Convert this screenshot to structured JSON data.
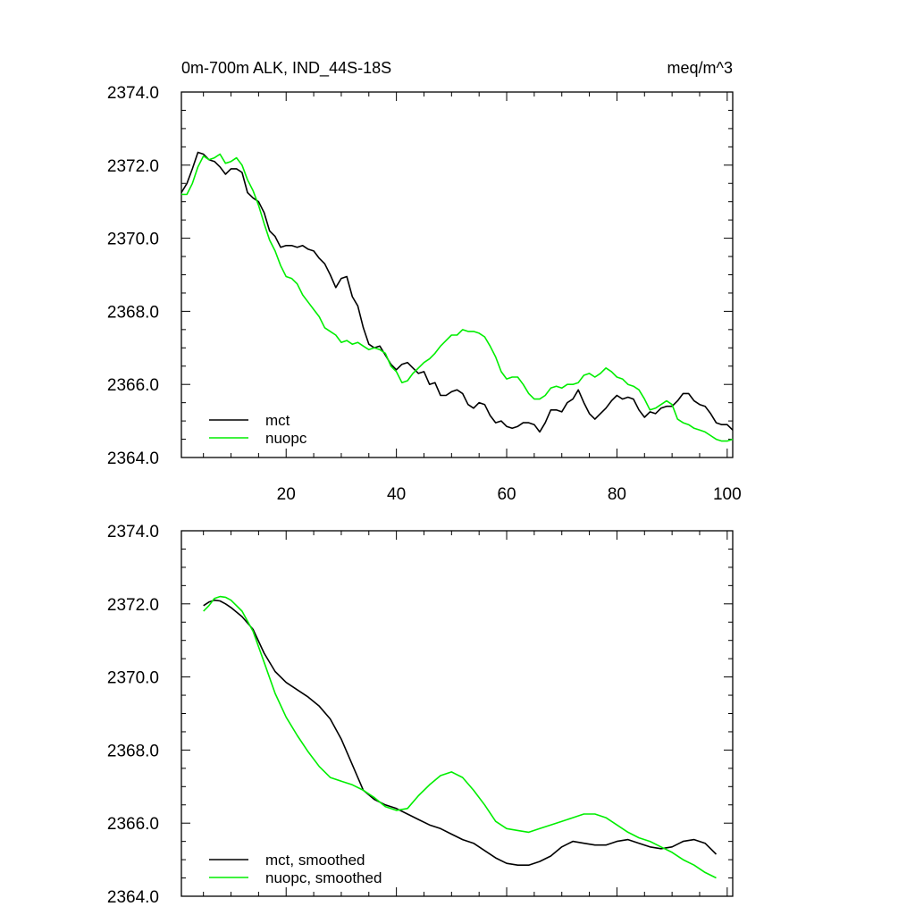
{
  "title_left": "0m-700m ALK, IND_44S-18S",
  "title_right": "meq/m^3",
  "chart_data": [
    {
      "type": "line",
      "title": "0m-700m ALK, IND_44S-18S",
      "units": "meq/m^3",
      "xlim": [
        1,
        101
      ],
      "ylim": [
        2364.0,
        2374.0
      ],
      "xticks": [
        20,
        40,
        60,
        80,
        100
      ],
      "xtick_labels": [
        "20",
        "40",
        "60",
        "80",
        "100"
      ],
      "show_xtick_labels": true,
      "yticks": [
        2364.0,
        2366.0,
        2368.0,
        2370.0,
        2372.0,
        2374.0
      ],
      "ytick_labels": [
        "2364.0",
        "2366.0",
        "2368.0",
        "2370.0",
        "2372.0",
        "2374.0"
      ],
      "grid": false,
      "legend": "bottom-left",
      "series": [
        {
          "name": "mct",
          "color": "#000000",
          "x": [
            1,
            2,
            3,
            4,
            5,
            6,
            7,
            8,
            9,
            10,
            11,
            12,
            13,
            14,
            15,
            16,
            17,
            18,
            19,
            20,
            21,
            22,
            23,
            24,
            25,
            26,
            27,
            28,
            29,
            30,
            31,
            32,
            33,
            34,
            35,
            36,
            37,
            38,
            39,
            40,
            41,
            42,
            43,
            44,
            45,
            46,
            47,
            48,
            49,
            50,
            51,
            52,
            53,
            54,
            55,
            56,
            57,
            58,
            59,
            60,
            61,
            62,
            63,
            64,
            65,
            66,
            67,
            68,
            69,
            70,
            71,
            72,
            73,
            74,
            75,
            76,
            77,
            78,
            79,
            80,
            81,
            82,
            83,
            84,
            85,
            86,
            87,
            88,
            89,
            90,
            91,
            92,
            93,
            94,
            95,
            96,
            97,
            98,
            99,
            100,
            101
          ],
          "values": [
            2371.25,
            2371.5,
            2371.9,
            2372.35,
            2372.3,
            2372.15,
            2372.1,
            2371.95,
            2371.75,
            2371.9,
            2371.9,
            2371.8,
            2371.25,
            2371.1,
            2371.0,
            2370.7,
            2370.2,
            2370.05,
            2369.75,
            2369.8,
            2369.8,
            2369.75,
            2369.8,
            2369.7,
            2369.65,
            2369.45,
            2369.3,
            2369.0,
            2368.65,
            2368.9,
            2368.95,
            2368.4,
            2368.15,
            2367.55,
            2367.1,
            2367.0,
            2367.05,
            2366.8,
            2366.55,
            2366.4,
            2366.55,
            2366.6,
            2366.45,
            2366.3,
            2366.35,
            2366.0,
            2366.05,
            2365.7,
            2365.7,
            2365.8,
            2365.85,
            2365.75,
            2365.45,
            2365.35,
            2365.5,
            2365.45,
            2365.15,
            2364.95,
            2365.0,
            2364.85,
            2364.8,
            2364.85,
            2364.95,
            2364.95,
            2364.9,
            2364.7,
            2364.95,
            2365.3,
            2365.3,
            2365.25,
            2365.5,
            2365.6,
            2365.85,
            2365.5,
            2365.2,
            2365.05,
            2365.2,
            2365.35,
            2365.55,
            2365.7,
            2365.6,
            2365.65,
            2365.6,
            2365.3,
            2365.1,
            2365.25,
            2365.2,
            2365.35,
            2365.4,
            2365.4,
            2365.55,
            2365.75,
            2365.75,
            2365.55,
            2365.45,
            2365.4,
            2365.2,
            2364.95,
            2364.9,
            2364.9,
            2364.75
          ]
        },
        {
          "name": "nuopc",
          "color": "#00ee00",
          "x": [
            1,
            2,
            3,
            4,
            5,
            6,
            7,
            8,
            9,
            10,
            11,
            12,
            13,
            14,
            15,
            16,
            17,
            18,
            19,
            20,
            21,
            22,
            23,
            24,
            25,
            26,
            27,
            28,
            29,
            30,
            31,
            32,
            33,
            34,
            35,
            36,
            37,
            38,
            39,
            40,
            41,
            42,
            43,
            44,
            45,
            46,
            47,
            48,
            49,
            50,
            51,
            52,
            53,
            54,
            55,
            56,
            57,
            58,
            59,
            60,
            61,
            62,
            63,
            64,
            65,
            66,
            67,
            68,
            69,
            70,
            71,
            72,
            73,
            74,
            75,
            76,
            77,
            78,
            79,
            80,
            81,
            82,
            83,
            84,
            85,
            86,
            87,
            88,
            89,
            90,
            91,
            92,
            93,
            94,
            95,
            96,
            97,
            98,
            99,
            100,
            101
          ],
          "values": [
            2371.2,
            2371.2,
            2371.5,
            2371.95,
            2372.25,
            2372.15,
            2372.2,
            2372.3,
            2372.05,
            2372.1,
            2372.2,
            2372.0,
            2371.6,
            2371.3,
            2370.9,
            2370.4,
            2369.95,
            2369.65,
            2369.25,
            2368.95,
            2368.9,
            2368.75,
            2368.45,
            2368.25,
            2368.05,
            2367.85,
            2367.55,
            2367.45,
            2367.35,
            2367.15,
            2367.2,
            2367.1,
            2367.15,
            2367.05,
            2366.95,
            2367.0,
            2366.95,
            2366.85,
            2366.5,
            2366.35,
            2366.05,
            2366.1,
            2366.3,
            2366.45,
            2366.6,
            2366.7,
            2366.85,
            2367.05,
            2367.2,
            2367.35,
            2367.35,
            2367.5,
            2367.45,
            2367.45,
            2367.4,
            2367.3,
            2367.05,
            2366.75,
            2366.35,
            2366.15,
            2366.2,
            2366.2,
            2366.0,
            2365.75,
            2365.6,
            2365.6,
            2365.7,
            2365.9,
            2365.95,
            2365.9,
            2366.0,
            2366.0,
            2366.05,
            2366.25,
            2366.3,
            2366.2,
            2366.3,
            2366.45,
            2366.35,
            2366.2,
            2366.15,
            2366.0,
            2365.95,
            2365.85,
            2365.6,
            2365.3,
            2365.35,
            2365.45,
            2365.55,
            2365.45,
            2365.05,
            2364.95,
            2364.9,
            2364.8,
            2364.75,
            2364.7,
            2364.6,
            2364.5,
            2364.45,
            2364.45,
            2364.5
          ]
        }
      ]
    },
    {
      "type": "line",
      "xlim": [
        1,
        101
      ],
      "ylim": [
        2364.0,
        2374.0
      ],
      "xticks": [
        20,
        40,
        60,
        80,
        100
      ],
      "xtick_labels": [
        "20",
        "40",
        "60",
        "80",
        "100"
      ],
      "show_xtick_labels": false,
      "yticks": [
        2364.0,
        2366.0,
        2368.0,
        2370.0,
        2372.0,
        2374.0
      ],
      "ytick_labels": [
        "2364.0",
        "2366.0",
        "2368.0",
        "2370.0",
        "2372.0",
        "2374.0"
      ],
      "grid": false,
      "legend": "bottom-left",
      "series": [
        {
          "name": "mct, smoothed",
          "color": "#000000",
          "x": [
            5,
            6,
            7,
            8,
            9,
            10,
            12,
            14,
            16,
            18,
            20,
            22,
            24,
            26,
            28,
            30,
            32,
            34,
            36,
            38,
            40,
            42,
            44,
            46,
            48,
            50,
            52,
            54,
            56,
            58,
            60,
            62,
            64,
            66,
            68,
            70,
            72,
            74,
            76,
            78,
            80,
            82,
            84,
            86,
            88,
            90,
            92,
            94,
            96,
            98
          ],
          "values": [
            2371.95,
            2372.05,
            2372.1,
            2372.08,
            2372.0,
            2371.9,
            2371.65,
            2371.3,
            2370.65,
            2370.15,
            2369.85,
            2369.65,
            2369.45,
            2369.2,
            2368.85,
            2368.3,
            2367.6,
            2366.9,
            2366.65,
            2366.5,
            2366.4,
            2366.25,
            2366.1,
            2365.95,
            2365.85,
            2365.7,
            2365.55,
            2365.45,
            2365.25,
            2365.05,
            2364.9,
            2364.85,
            2364.85,
            2364.95,
            2365.1,
            2365.35,
            2365.5,
            2365.45,
            2365.4,
            2365.4,
            2365.5,
            2365.55,
            2365.45,
            2365.35,
            2365.3,
            2365.35,
            2365.5,
            2365.55,
            2365.45,
            2365.15
          ]
        },
        {
          "name": "nuopc, smoothed",
          "color": "#00ee00",
          "x": [
            5,
            6,
            7,
            8,
            9,
            10,
            12,
            14,
            16,
            18,
            20,
            22,
            24,
            26,
            28,
            30,
            32,
            34,
            36,
            38,
            40,
            42,
            44,
            46,
            48,
            50,
            52,
            54,
            56,
            58,
            60,
            62,
            64,
            66,
            68,
            70,
            72,
            74,
            76,
            78,
            80,
            82,
            84,
            86,
            88,
            90,
            92,
            94,
            96,
            98
          ],
          "values": [
            2371.8,
            2371.95,
            2372.15,
            2372.2,
            2372.18,
            2372.1,
            2371.8,
            2371.25,
            2370.4,
            2369.55,
            2368.9,
            2368.4,
            2367.95,
            2367.55,
            2367.25,
            2367.15,
            2367.05,
            2366.9,
            2366.7,
            2366.45,
            2366.35,
            2366.4,
            2366.75,
            2367.05,
            2367.3,
            2367.4,
            2367.25,
            2366.9,
            2366.5,
            2366.05,
            2365.85,
            2365.8,
            2365.75,
            2365.85,
            2365.95,
            2366.05,
            2366.15,
            2366.25,
            2366.25,
            2366.15,
            2365.95,
            2365.75,
            2365.6,
            2365.5,
            2365.35,
            2365.2,
            2365.0,
            2364.85,
            2364.65,
            2364.5
          ]
        }
      ]
    }
  ]
}
